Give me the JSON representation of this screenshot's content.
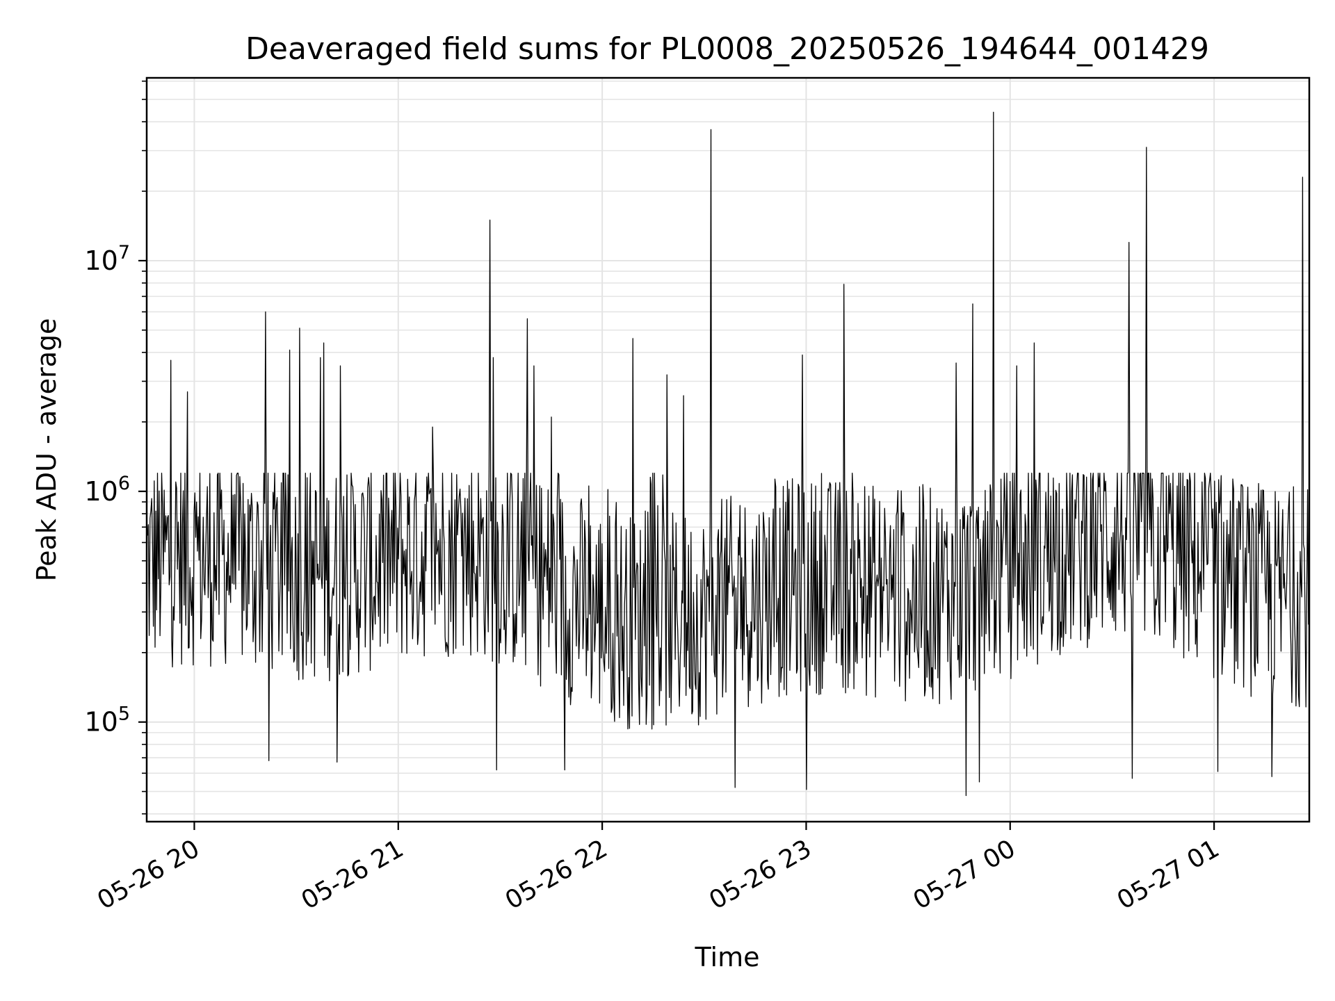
{
  "chart_data": {
    "type": "line",
    "title": "Deaveraged field sums for PL0008_20250526_194644_001429",
    "xlabel": "Time",
    "ylabel": "Peak ADU - average",
    "x_scale": "time",
    "y_scale": "log",
    "xlim": [
      "2025-05-26 19:46",
      "2025-05-27 01:28"
    ],
    "ylim": [
      37000,
      62000000
    ],
    "grid": true,
    "x_ticks": [
      {
        "value": "2025-05-26 20:00",
        "label": "05-26 20"
      },
      {
        "value": "2025-05-26 21:00",
        "label": "05-26 21"
      },
      {
        "value": "2025-05-26 22:00",
        "label": "05-26 22"
      },
      {
        "value": "2025-05-26 23:00",
        "label": "05-26 23"
      },
      {
        "value": "2025-05-27 00:00",
        "label": "05-27 00"
      },
      {
        "value": "2025-05-27 01:00",
        "label": "05-27 01"
      }
    ],
    "y_ticks": [
      {
        "value": 100000,
        "base": "10",
        "exp": "5"
      },
      {
        "value": 1000000,
        "base": "10",
        "exp": "6"
      },
      {
        "value": 10000000,
        "base": "10",
        "exp": "7"
      }
    ],
    "series": [
      {
        "color": "#000000",
        "baseline": 450000,
        "spikes": [
          {
            "x": "2025-05-26 19:53",
            "y": 3700000
          },
          {
            "x": "2025-05-26 19:58",
            "y": 2700000
          },
          {
            "x": "2025-05-26 20:21",
            "y": 6000000
          },
          {
            "x": "2025-05-26 20:28",
            "y": 4100000
          },
          {
            "x": "2025-05-26 20:31",
            "y": 5100000
          },
          {
            "x": "2025-05-26 20:37",
            "y": 3800000
          },
          {
            "x": "2025-05-26 20:38",
            "y": 4400000
          },
          {
            "x": "2025-05-26 20:43",
            "y": 3500000
          },
          {
            "x": "2025-05-26 21:10",
            "y": 1900000
          },
          {
            "x": "2025-05-26 21:27",
            "y": 15000000
          },
          {
            "x": "2025-05-26 21:28",
            "y": 3800000
          },
          {
            "x": "2025-05-26 21:38",
            "y": 5600000
          },
          {
            "x": "2025-05-26 21:40",
            "y": 3500000
          },
          {
            "x": "2025-05-26 21:45",
            "y": 2100000
          },
          {
            "x": "2025-05-26 22:09",
            "y": 4600000
          },
          {
            "x": "2025-05-26 22:19",
            "y": 3200000
          },
          {
            "x": "2025-05-26 22:24",
            "y": 2600000
          },
          {
            "x": "2025-05-26 22:32",
            "y": 37000000
          },
          {
            "x": "2025-05-26 22:59",
            "y": 3900000
          },
          {
            "x": "2025-05-26 23:11",
            "y": 7900000
          },
          {
            "x": "2025-05-26 23:44",
            "y": 3600000
          },
          {
            "x": "2025-05-26 23:49",
            "y": 6500000
          },
          {
            "x": "2025-05-26 23:55",
            "y": 44000000
          },
          {
            "x": "2025-05-27 00:02",
            "y": 3500000
          },
          {
            "x": "2025-05-27 00:07",
            "y": 4400000
          },
          {
            "x": "2025-05-27 00:35",
            "y": 12000000
          },
          {
            "x": "2025-05-27 00:40",
            "y": 31000000
          },
          {
            "x": "2025-05-27 01:26",
            "y": 23000000
          }
        ],
        "dips": [
          {
            "x": "2025-05-26 20:22",
            "y": 68000
          },
          {
            "x": "2025-05-26 20:42",
            "y": 67000
          },
          {
            "x": "2025-05-26 21:29",
            "y": 62000
          },
          {
            "x": "2025-05-26 21:49",
            "y": 62000
          },
          {
            "x": "2025-05-26 22:39",
            "y": 52000
          },
          {
            "x": "2025-05-26 23:00",
            "y": 51000
          },
          {
            "x": "2025-05-26 23:47",
            "y": 48000
          },
          {
            "x": "2025-05-26 23:51",
            "y": 55000
          },
          {
            "x": "2025-05-27 00:36",
            "y": 57000
          },
          {
            "x": "2025-05-27 01:01",
            "y": 61000
          },
          {
            "x": "2025-05-27 01:17",
            "y": 58000
          }
        ]
      }
    ]
  }
}
